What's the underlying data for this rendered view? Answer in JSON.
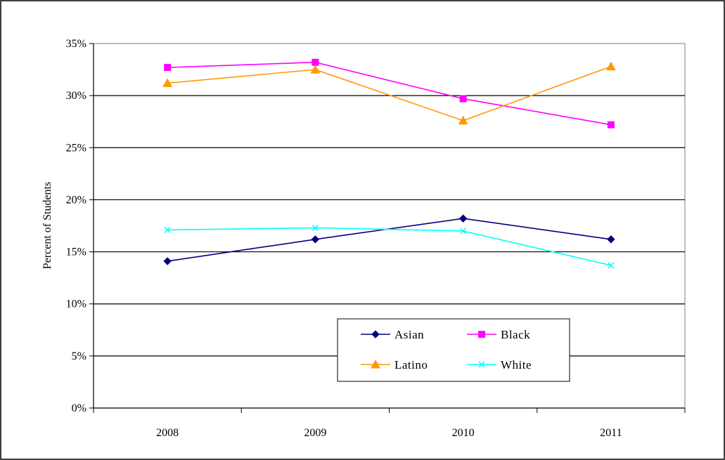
{
  "chart_data": {
    "type": "line",
    "title": "",
    "xlabel": "",
    "ylabel": "Percent of Students",
    "categories": [
      "2008",
      "2009",
      "2010",
      "2011"
    ],
    "ylim": [
      0,
      35
    ],
    "y_ticks": [
      "0%",
      "5%",
      "10%",
      "15%",
      "20%",
      "25%",
      "30%",
      "35%"
    ],
    "grid": "horizontal",
    "legend_position": "bottom-center",
    "series": [
      {
        "name": "Asian",
        "values": [
          14.1,
          16.2,
          18.2,
          16.2
        ],
        "color": "#000080",
        "marker": "diamond"
      },
      {
        "name": "Black",
        "values": [
          32.7,
          33.2,
          29.7,
          27.2
        ],
        "color": "#FF00FF",
        "marker": "square"
      },
      {
        "name": "Latino",
        "values": [
          31.2,
          32.5,
          27.6,
          32.8
        ],
        "color": "#FF9900",
        "marker": "triangle"
      },
      {
        "name": "White",
        "values": [
          17.1,
          17.3,
          17.0,
          13.7
        ],
        "color": "#00FFFF",
        "marker": "x"
      }
    ]
  }
}
